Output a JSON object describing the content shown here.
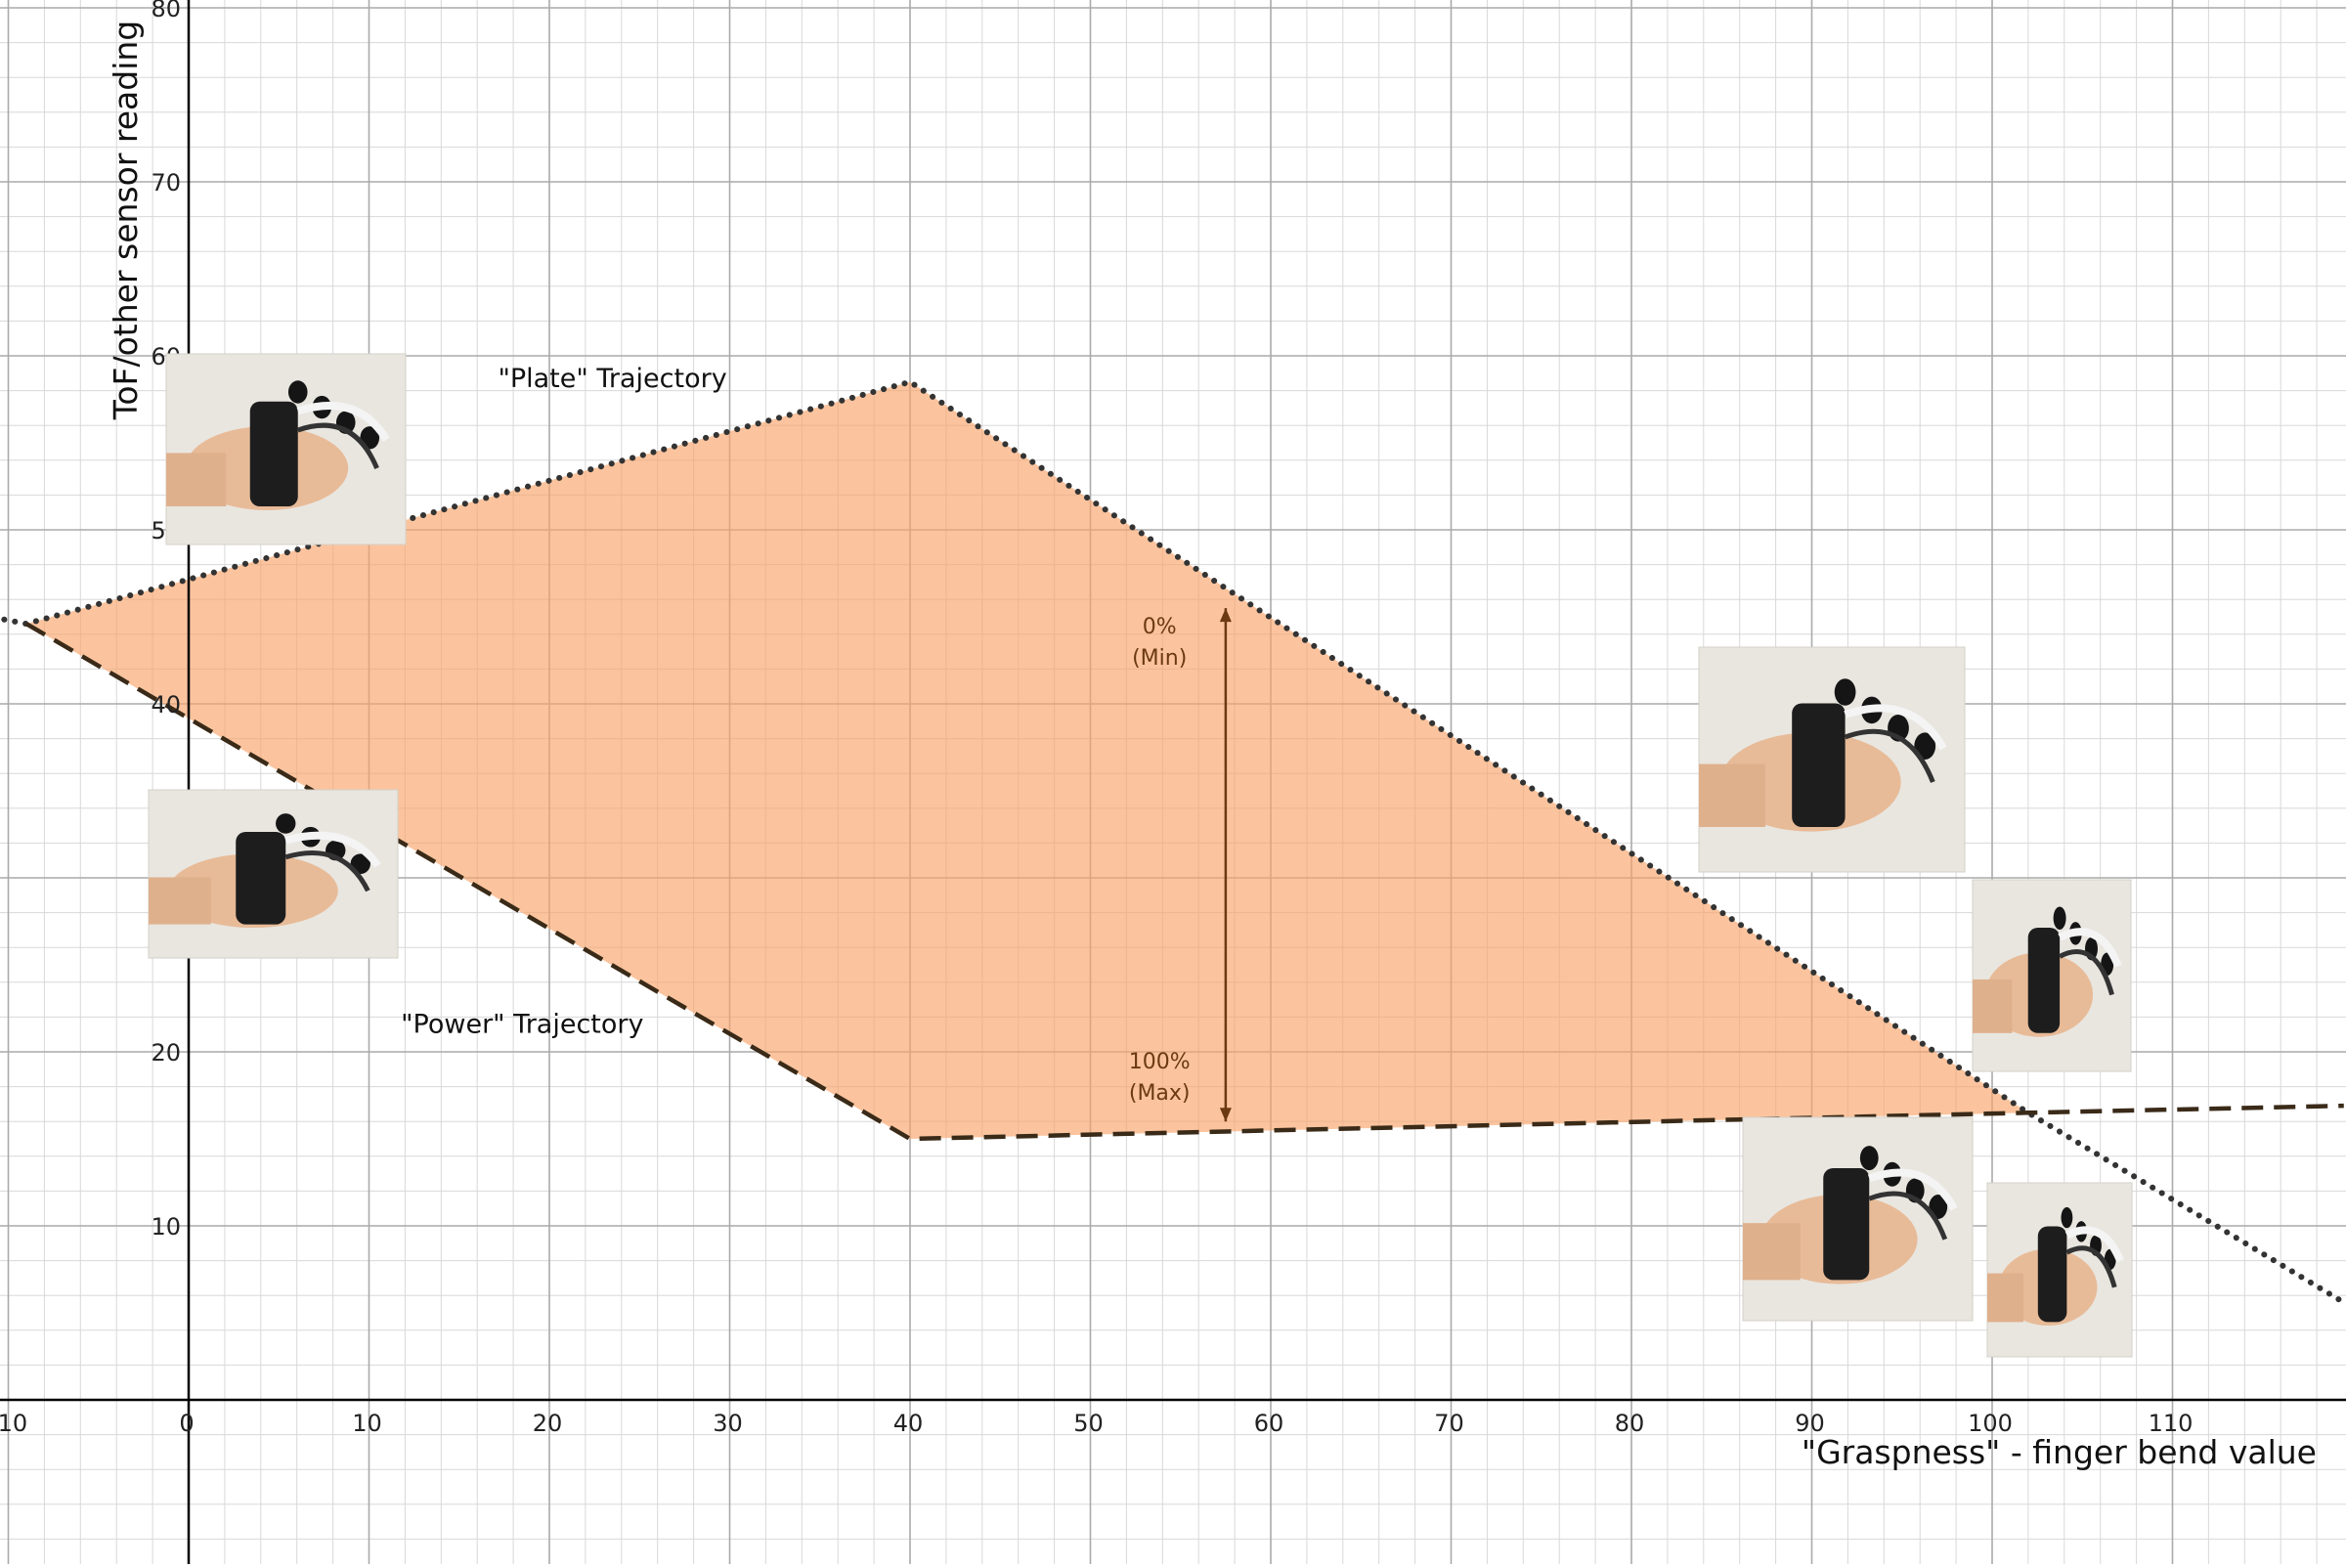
{
  "chart_data": {
    "type": "area",
    "xlabel": "\"Graspness\" - finger bend value",
    "ylabel": "ToF/other sensor reading",
    "xlim": [
      -10.5,
      119.5
    ],
    "ylim": [
      -9.2,
      80.5
    ],
    "x_ticks": [
      -10,
      0,
      10,
      20,
      30,
      40,
      50,
      60,
      70,
      80,
      90,
      100,
      110
    ],
    "y_ticks": [
      10,
      20,
      30,
      40,
      50,
      60,
      70,
      80
    ],
    "grid": true,
    "colors": {
      "region_fill": "#f9a46a",
      "plate_line": "#333333",
      "power_line": "#3a2a18",
      "measure_arrow": "#6b3a12",
      "grid_major": "#aaaaaa",
      "grid_minor": "#d8d8d8",
      "axis": "#000000"
    },
    "series": [
      {
        "name": "\"Plate\" Trajectory",
        "style": "dotted",
        "x": [
          -12,
          -9,
          40,
          102,
          119.5
        ],
        "y": [
          45.2,
          44.6,
          58.5,
          16.5,
          5.6
        ]
      },
      {
        "name": "\"Power\" Trajectory",
        "style": "dashed",
        "x": [
          -9,
          40,
          102,
          119.5
        ],
        "y": [
          44.6,
          15,
          16.5,
          16.9
        ]
      }
    ],
    "shaded_region": {
      "x": [
        -9,
        40,
        102,
        40
      ],
      "y": [
        44.6,
        58.5,
        16.5,
        15
      ]
    },
    "measure_arrow": {
      "x": 57.5,
      "y_from": 45.5,
      "y_to": 16
    },
    "annotations": [
      {
        "text": "\"Plate\" Trajectory",
        "x": 23.5,
        "y": 58.2
      },
      {
        "text": "\"Power\" Trajectory",
        "x": 18.5,
        "y": 21.1
      }
    ],
    "measure_labels": [
      {
        "top": "0%",
        "bottom": "(Min)",
        "x": 56,
        "y": 44.5
      },
      {
        "top": "100%",
        "bottom": "(Max)",
        "x": 56,
        "y": 19.5
      }
    ]
  }
}
